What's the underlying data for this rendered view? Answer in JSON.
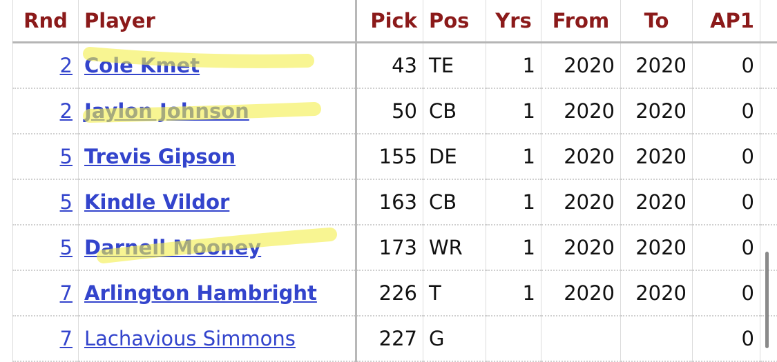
{
  "table": {
    "headers": [
      "Rnd",
      "Player",
      "Pick",
      "Pos",
      "Yrs",
      "From",
      "To",
      "AP1"
    ],
    "rows": [
      [
        2,
        "Cole Kmet",
        43,
        "TE",
        1,
        2020,
        2020,
        0
      ],
      [
        2,
        "Jaylon Johnson",
        50,
        "CB",
        1,
        2020,
        2020,
        0
      ],
      [
        5,
        "Trevis Gipson",
        155,
        "DE",
        1,
        2020,
        2020,
        0
      ],
      [
        5,
        "Kindle Vildor",
        163,
        "CB",
        1,
        2020,
        2020,
        0
      ],
      [
        5,
        "Darnell Mooney",
        173,
        "WR",
        1,
        2020,
        2020,
        0
      ],
      [
        7,
        "Arlington Hambright",
        226,
        "T",
        1,
        2020,
        2020,
        0
      ],
      [
        7,
        "Lachavious Simmons",
        227,
        "G",
        null,
        null,
        null,
        0
      ]
    ]
  }
}
